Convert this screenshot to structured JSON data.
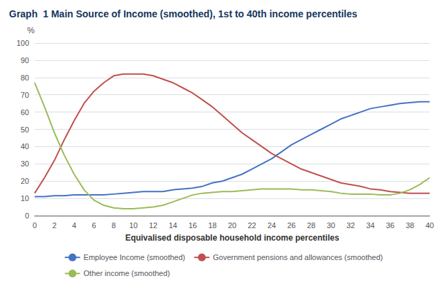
{
  "chart_data": {
    "type": "line",
    "title": "Graph  1 Main Source of Income (smoothed), 1st to 40th income percentiles",
    "x_label": "Equivalised disposable household income percentiles",
    "y_label": "%",
    "x": [
      0,
      1,
      2,
      3,
      4,
      5,
      6,
      7,
      8,
      9,
      10,
      11,
      12,
      13,
      14,
      15,
      16,
      17,
      18,
      19,
      20,
      21,
      22,
      23,
      24,
      25,
      26,
      27,
      28,
      29,
      30,
      31,
      32,
      33,
      34,
      35,
      36,
      37,
      38,
      39,
      40
    ],
    "series": [
      {
        "name": "Employee Income (smoothed)",
        "color": "#4472C4",
        "values": [
          11,
          11,
          11.5,
          11.5,
          12,
          12,
          12,
          12,
          12.5,
          13,
          13.5,
          14,
          14,
          14,
          15,
          15.5,
          16,
          17,
          19,
          20,
          22,
          24,
          27,
          30,
          33,
          37,
          41,
          44,
          47,
          50,
          53,
          56,
          58,
          60,
          62,
          63,
          64,
          65,
          65.5,
          66,
          66
        ]
      },
      {
        "name": "Government pensions and allowances (smoothed)",
        "color": "#C0504D",
        "values": [
          13,
          22,
          32,
          44,
          55,
          65,
          72,
          77,
          81,
          82,
          82,
          82,
          81,
          79,
          77,
          74,
          71,
          67,
          63,
          58,
          53,
          48,
          44,
          40,
          36,
          33,
          30,
          27,
          25,
          23,
          21,
          19,
          18,
          17,
          15.5,
          15,
          14,
          13.5,
          13,
          13,
          13
        ]
      },
      {
        "name": "Other income (smoothed)",
        "color": "#9BBB59",
        "values": [
          77,
          63,
          48,
          35,
          24,
          15,
          9,
          6,
          4.5,
          4,
          4,
          4.5,
          5,
          6,
          8,
          10,
          12,
          13,
          13.5,
          14,
          14,
          14.5,
          15,
          15.5,
          15.5,
          15.5,
          15.5,
          15,
          15,
          14.5,
          14,
          13,
          12.5,
          12.5,
          12.5,
          12,
          12,
          13,
          15,
          18,
          22
        ]
      }
    ],
    "xlim": [
      0,
      40
    ],
    "ylim": [
      0,
      100
    ],
    "xticks": [
      0,
      2,
      4,
      6,
      8,
      10,
      12,
      14,
      16,
      18,
      20,
      22,
      24,
      26,
      28,
      30,
      32,
      34,
      36,
      38,
      40
    ],
    "yticks": [
      0,
      10,
      20,
      30,
      40,
      50,
      60,
      70,
      80,
      90,
      100
    ],
    "grid": true,
    "legend": "bottom"
  }
}
